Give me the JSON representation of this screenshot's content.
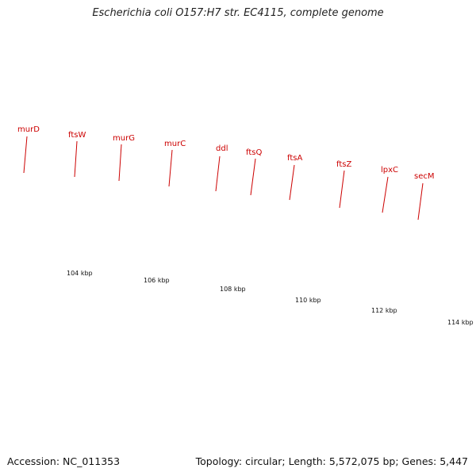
{
  "title": "Escherichia coli O157:H7 str. EC4115, complete genome",
  "footer": {
    "accession": "Accession: NC_011353",
    "summary": "Topology: circular; Length: 5,572,075 bp; Genes: 5,447"
  },
  "colors": {
    "gene_dark": "#6b8e23",
    "gene_light": "#eee8aa",
    "gene_lime": "#adff2f",
    "cds_red": "#ff0000",
    "backbone": "#808080",
    "tick": "#2f8f2f",
    "label": "#cc0000"
  },
  "gene_labels": [
    "murD",
    "ftsW",
    "murG",
    "murC",
    "ddl",
    "ftsQ",
    "ftsA",
    "ftsZ",
    "lpxC",
    "secM"
  ],
  "kbp_labels": [
    "104 kbp",
    "106 kbp",
    "108 kbp",
    "110 kbp",
    "112 kbp",
    "114 kbp"
  ]
}
